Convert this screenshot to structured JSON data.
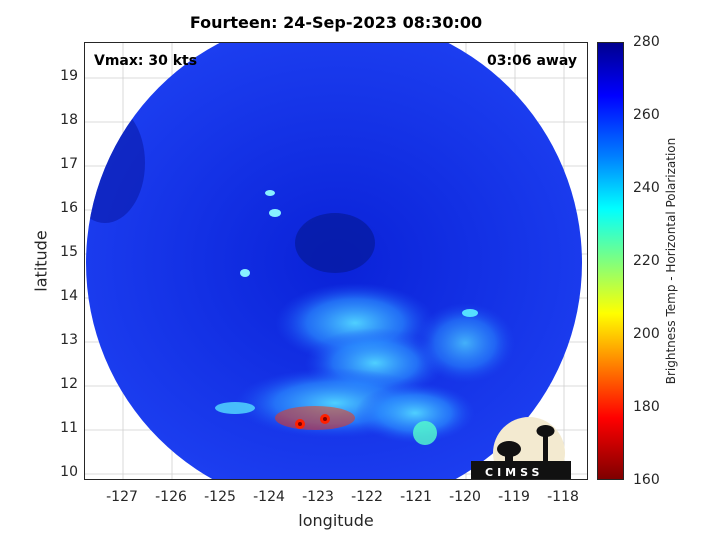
{
  "title": "Fourteen: 24-Sep-2023 08:30:00",
  "vmax_label": "Vmax: 30 kts",
  "away_label": "03:06 away",
  "map": {
    "xlabel": "longitude",
    "ylabel": "latitude",
    "xlim": [
      -127.8,
      -117.5
    ],
    "ylim": [
      9.85,
      19.85
    ],
    "xticks": [
      "-127",
      "-126",
      "-125",
      "-124",
      "-123",
      "-122",
      "-121",
      "-120",
      "-119",
      "-118"
    ],
    "yticks": [
      "10",
      "11",
      "12",
      "13",
      "14",
      "15",
      "16",
      "17",
      "18",
      "19"
    ],
    "grid": true,
    "center": {
      "lon": -122.3,
      "lat": 14.8
    }
  },
  "colorbar": {
    "label": "Brightness Temp - Horizontal Polarization",
    "ticks": [
      "280",
      "260",
      "240",
      "220",
      "200",
      "180",
      "160"
    ],
    "range": [
      160,
      280
    ],
    "colors": {
      "low": "#7f0000",
      "mid": "#00ffff",
      "high": "#00008f"
    }
  },
  "logo": {
    "text": "CIMSS"
  }
}
